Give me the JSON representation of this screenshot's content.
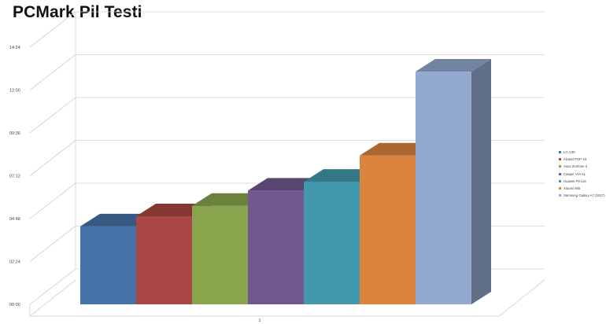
{
  "chart_data": {
    "type": "bar",
    "title": "PCMark Pil Testi",
    "xlabel": "",
    "ylabel": "",
    "categories": [
      "1"
    ],
    "y_tick_labels": [
      "00:00",
      "02:24",
      "04:48",
      "07:12",
      "09:36",
      "12:00",
      "14:24"
    ],
    "ylim_minutes": [
      0,
      864
    ],
    "grid": true,
    "legend_position": "right",
    "series": [
      {
        "name": "LG V30",
        "value": "04:22",
        "minutes": 262,
        "color": "#4572A7"
      },
      {
        "name": "Alcatel POP 4S",
        "value": "04:56",
        "minutes": 296,
        "color": "#AA4643"
      },
      {
        "name": "Asus Zenfone 3",
        "value": "05:31",
        "minutes": 331,
        "color": "#89A54E"
      },
      {
        "name": "Casper VIA A1",
        "value": "06:22",
        "minutes": 382,
        "color": "#71588F"
      },
      {
        "name": "Huawei P9 Lite",
        "value": "06:52",
        "minutes": 412,
        "color": "#4198AF"
      },
      {
        "name": "Xiaomi Mi5",
        "value": "08:20",
        "minutes": 500,
        "color": "#DB843D"
      },
      {
        "name": "Samsung Galaxy A7 (2017)",
        "value": "13:02",
        "minutes": 782,
        "color": "#93A9CF"
      }
    ]
  }
}
